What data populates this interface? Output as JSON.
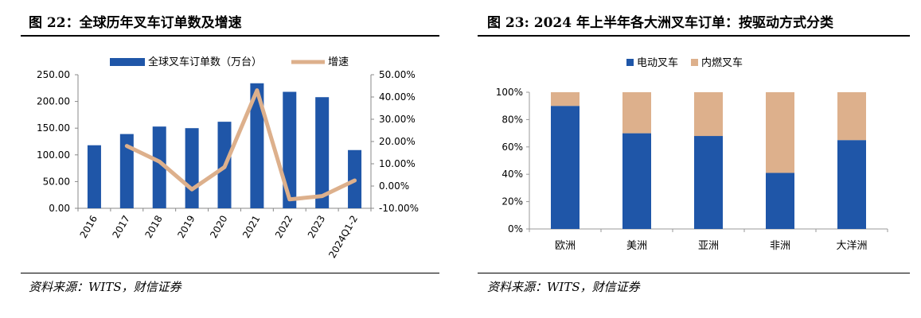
{
  "panels": {
    "left": {
      "title": "图 22：全球历年叉车订单数及增速",
      "source": "资料来源：WITS，财信证券"
    },
    "right": {
      "title": "图 23: 2024 年上半年各大洲叉车订单：按驱动方式分类",
      "source": "资料来源：WITS，财信证券"
    }
  },
  "colors": {
    "blue": "#1f56a8",
    "tan": "#ddb08c"
  },
  "chart_data": [
    {
      "type": "bar",
      "categories": [
        "2016",
        "2017",
        "2018",
        "2019",
        "2020",
        "2021",
        "2022",
        "2023",
        "2024Q1-2"
      ],
      "series": [
        {
          "name": "全球叉车订单数（万台）",
          "type": "bar",
          "axis": "left",
          "values": [
            118,
            139,
            153,
            150,
            162,
            234,
            218,
            208,
            109
          ]
        },
        {
          "name": "增速",
          "type": "line",
          "axis": "right",
          "unit": "%",
          "values": [
            null,
            18.0,
            11.0,
            -1.5,
            8.5,
            43.0,
            -6.0,
            -4.5,
            2.5
          ]
        }
      ],
      "y_left": {
        "ylim": [
          0,
          250
        ],
        "ticks": [
          "0.00",
          "50.00",
          "100.00",
          "150.00",
          "200.00",
          "250.00"
        ]
      },
      "y_right": {
        "ylim": [
          -10,
          50
        ],
        "ticks": [
          "-10.00%",
          "0.00%",
          "10.00%",
          "20.00%",
          "30.00%",
          "40.00%",
          "50.00%"
        ]
      },
      "legend": "top"
    },
    {
      "type": "bar",
      "stacked": true,
      "categories": [
        "欧洲",
        "美洲",
        "亚洲",
        "非洲",
        "大洋洲"
      ],
      "series": [
        {
          "name": "电动叉车",
          "values": [
            90,
            70,
            68,
            41,
            65
          ]
        },
        {
          "name": "内燃叉车",
          "values": [
            10,
            30,
            32,
            59,
            35
          ]
        }
      ],
      "ylim": [
        0,
        100
      ],
      "ticks": [
        "0%",
        "20%",
        "40%",
        "60%",
        "80%",
        "100%"
      ],
      "legend": "top"
    }
  ]
}
